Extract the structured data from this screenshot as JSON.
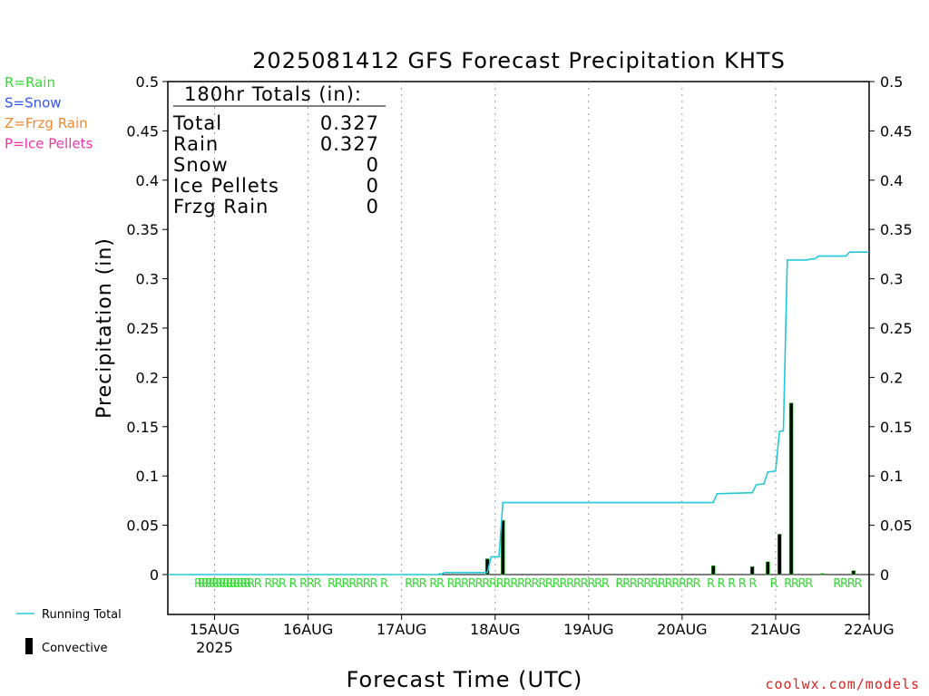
{
  "chart_data": {
    "type": "line",
    "title": "2025081412 GFS Forecast Precipitation KHTS",
    "xlabel": "Forecast Time (UTC)",
    "ylabel": "Precipitation (in)",
    "ylim": [
      0,
      0.5
    ],
    "xlim": [
      "2025-08-14T12:00Z",
      "2025-08-22T00:00Z"
    ],
    "yticks": [
      "0",
      "0.05",
      "0.1",
      "0.15",
      "0.2",
      "0.25",
      "0.3",
      "0.35",
      "0.4",
      "0.45",
      "0.5"
    ],
    "xtick_labels": [
      "15AUG",
      "16AUG",
      "17AUG",
      "18AUG",
      "19AUG",
      "20AUG",
      "21AUG",
      "22AUG"
    ],
    "xtick_year": "2025",
    "grid": "dotted vertical",
    "totals": {
      "header": "180hr Totals (in):",
      "rows": [
        {
          "label": "Total",
          "value": "0.327"
        },
        {
          "label": "Rain",
          "value": "0.327"
        },
        {
          "label": "Snow",
          "value": "0"
        },
        {
          "label": "Ice Pellets",
          "value": "0"
        },
        {
          "label": "Frzg Rain",
          "value": "0"
        }
      ]
    },
    "ptype_legend": [
      {
        "text": "R=Rain",
        "color": "#33dd33"
      },
      {
        "text": "S=Snow",
        "color": "#3355ee"
      },
      {
        "text": "Z=Frzg Rain",
        "color": "#ee8833"
      },
      {
        "text": "P=Ice Pellets",
        "color": "#ee33aa"
      }
    ],
    "series_legend": [
      {
        "text": "Running Total",
        "color": "#22c8d8"
      },
      {
        "text": "Convective",
        "color": "#000000"
      }
    ],
    "running_total": {
      "name": "Running Total",
      "x_hours_from_start": [
        0,
        70,
        71,
        82,
        83,
        85,
        86,
        140,
        141,
        150,
        151,
        153,
        154,
        156,
        157,
        158,
        159,
        160,
        161,
        164,
        165,
        166,
        167,
        174,
        175,
        180
      ],
      "y": [
        0,
        0,
        0.002,
        0.002,
        0.018,
        0.018,
        0.073,
        0.073,
        0.082,
        0.083,
        0.091,
        0.092,
        0.104,
        0.105,
        0.145,
        0.146,
        0.319,
        0.319,
        0.319,
        0.319,
        0.32,
        0.32,
        0.323,
        0.323,
        0.327,
        0.327
      ],
      "color": "#22c8d8"
    },
    "convective": {
      "name": "Convective",
      "x_hours_from_start": [
        70,
        82,
        86,
        140,
        150,
        154,
        157,
        160,
        168,
        176
      ],
      "y": [
        0.001,
        0.016,
        0.055,
        0.009,
        0.008,
        0.013,
        0.041,
        0.174,
        0.001,
        0.004
      ],
      "bar_color": "#000000",
      "bar_edge": "#33cc33"
    },
    "ptype_markers_hours": [
      4,
      5,
      6,
      7,
      8,
      9,
      10,
      11,
      12,
      13,
      14,
      15,
      16,
      17,
      18,
      19,
      21,
      24,
      26,
      28,
      31,
      34,
      36,
      38,
      42,
      44,
      46,
      48,
      50,
      52,
      54,
      57,
      64,
      66,
      68,
      71,
      73,
      76,
      78,
      80,
      82,
      84,
      86,
      88,
      90,
      92,
      94,
      96,
      98,
      100,
      102,
      104,
      106,
      108,
      110,
      112,
      114,
      116,
      118,
      120,
      124,
      126,
      128,
      130,
      132,
      134,
      136,
      138,
      140,
      142,
      144,
      146,
      150,
      153,
      156,
      159,
      162,
      168,
      172,
      174,
      176,
      178,
      186,
      188,
      190,
      192
    ],
    "ptype_marker_letter": "R"
  },
  "footer": {
    "credit": "coolwx.com/models"
  },
  "colors": {
    "running_total": "#22c8d8",
    "convective_fill": "#000000",
    "rain_text": "#33dd33",
    "credit_text": "#dd2222"
  }
}
